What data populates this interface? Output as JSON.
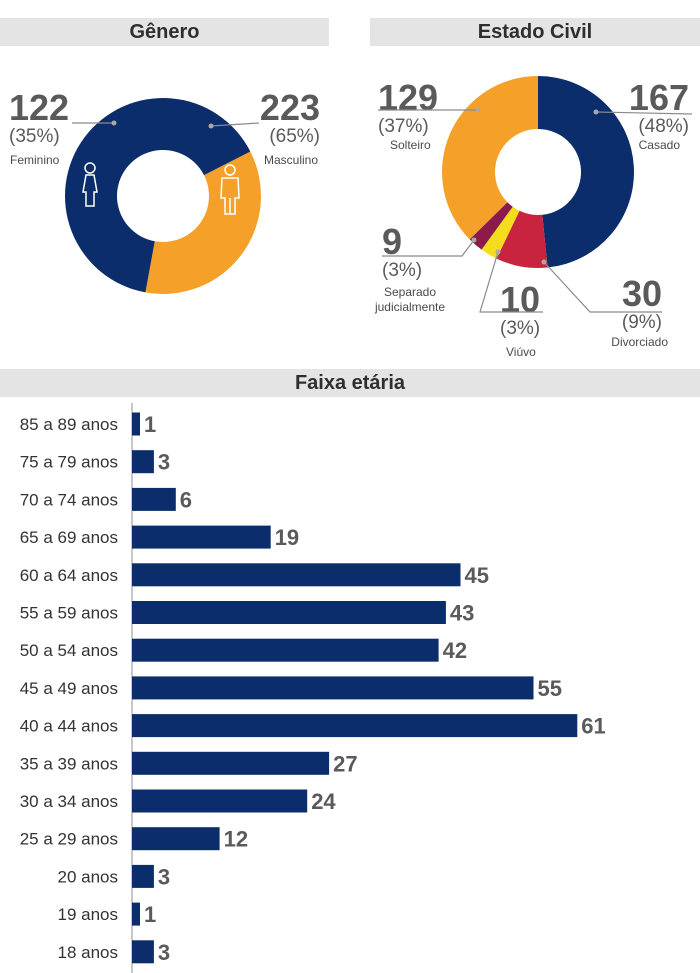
{
  "colors": {
    "navy": "#0b2d6b",
    "orange": "#f4a029",
    "red": "#c8233f",
    "yellow": "#f5dd1e",
    "maroon": "#8c1b4c"
  },
  "chart_data": [
    {
      "type": "pie",
      "title": "Gênero",
      "slices": [
        {
          "label": "Feminino",
          "value": 122,
          "percent_label": "(35%)",
          "color": "#f4a029",
          "icon": "female-person-icon"
        },
        {
          "label": "Masculino",
          "value": 223,
          "percent_label": "(65%)",
          "color": "#0b2d6b",
          "icon": "male-person-icon"
        }
      ]
    },
    {
      "type": "pie",
      "title": "Estado Civil",
      "slices": [
        {
          "label": "Casado",
          "value": 167,
          "percent_label": "(48%)",
          "color": "#0b2d6b"
        },
        {
          "label": "Divorciado",
          "value": 30,
          "percent_label": "(9%)",
          "color": "#c8233f"
        },
        {
          "label": "Viúvo",
          "value": 10,
          "percent_label": "(3%)",
          "color": "#f5dd1e"
        },
        {
          "label": "Separado judicialmente",
          "value": 9,
          "percent_label": "(3%)",
          "color": "#8c1b4c"
        },
        {
          "label": "Solteiro",
          "value": 129,
          "percent_label": "(37%)",
          "color": "#f4a029"
        }
      ]
    },
    {
      "type": "bar",
      "orientation": "horizontal",
      "title": "Faixa etária",
      "categories": [
        "85 a 89 anos",
        "75 a 79 anos",
        "70 a 74 anos",
        "65 a 69 anos",
        "60 a 64 anos",
        "55 a 59 anos",
        "50 a 54 anos",
        "45 a 49 anos",
        "40 a 44 anos",
        "35 a 39 anos",
        "30 a 34 anos",
        "25 a 29 anos",
        "20 anos",
        "19 anos",
        "18 anos"
      ],
      "values": [
        1,
        3,
        6,
        19,
        45,
        43,
        42,
        55,
        61,
        27,
        24,
        12,
        3,
        1,
        3
      ],
      "color": "#0b2d6b",
      "grid": false
    }
  ]
}
